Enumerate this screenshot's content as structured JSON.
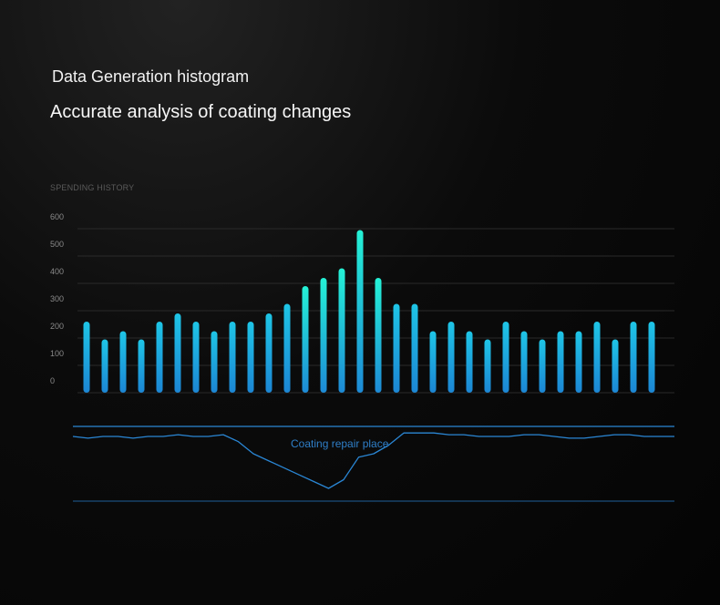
{
  "header": {
    "title": "Data Generation histogram",
    "subtitle": "Accurate analysis of coating changes"
  },
  "chart_data": [
    {
      "type": "bar",
      "title": "SPENDING HISTORY",
      "y_ticks": [
        0,
        100,
        200,
        300,
        400,
        500,
        600
      ],
      "ylim": [
        0,
        600
      ],
      "grid": true,
      "values": [
        260,
        195,
        225,
        195,
        260,
        290,
        260,
        225,
        260,
        260,
        290,
        325,
        390,
        420,
        455,
        595,
        420,
        325,
        325,
        225,
        260,
        225,
        195,
        260,
        225,
        195,
        225,
        225,
        260,
        195,
        260,
        260
      ],
      "colors": {
        "low": "#1e8fd8",
        "high": "#22f0d6",
        "grid": "#2a2a2a",
        "tick": "#8a8a8a"
      }
    },
    {
      "type": "line",
      "annotation": "Coating repair place",
      "color": "#2a86d4",
      "x": [
        0,
        1,
        2,
        3,
        4,
        5,
        6,
        7,
        8,
        9,
        10,
        11,
        12,
        13,
        14,
        15,
        16,
        17,
        18,
        19,
        20,
        21,
        22,
        23,
        24,
        25,
        26,
        27,
        28,
        29,
        30,
        31,
        32,
        33,
        34,
        35,
        36,
        37,
        38,
        39,
        40
      ],
      "y": [
        0,
        -1,
        0,
        0,
        -1,
        0,
        0,
        1,
        0,
        0,
        1,
        -3,
        -10,
        -14,
        -18,
        -22,
        -26,
        -30,
        -25,
        -12,
        -10,
        -5,
        2,
        2,
        2,
        1,
        1,
        0,
        0,
        0,
        1,
        1,
        0,
        -1,
        -1,
        0,
        1,
        1,
        0,
        0,
        0
      ]
    }
  ]
}
